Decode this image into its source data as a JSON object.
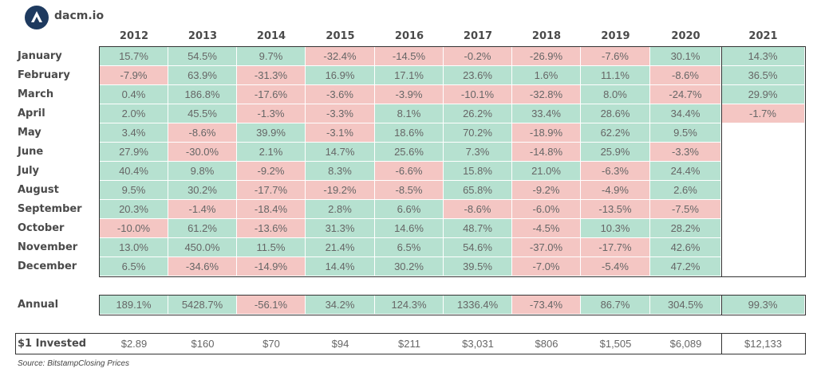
{
  "brand": {
    "name": "dacm.io",
    "logo_color": "#1e3a5f"
  },
  "colors": {
    "positive": "#b6e1d0",
    "negative": "#f4c6c3"
  },
  "chart_data": {
    "type": "table",
    "columns": [
      "2012",
      "2013",
      "2014",
      "2015",
      "2016",
      "2017",
      "2018",
      "2019",
      "2020",
      "2021"
    ],
    "rows": [
      {
        "label": "January",
        "values": [
          "15.7%",
          "54.5%",
          "9.7%",
          "-32.4%",
          "-14.5%",
          "-0.2%",
          "-26.9%",
          "-7.6%",
          "30.1%",
          "14.3%"
        ]
      },
      {
        "label": "February",
        "values": [
          "-7.9%",
          "63.9%",
          "-31.3%",
          "16.9%",
          "17.1%",
          "23.6%",
          "1.6%",
          "11.1%",
          "-8.6%",
          "36.5%"
        ]
      },
      {
        "label": "March",
        "values": [
          "0.4%",
          "186.8%",
          "-17.6%",
          "-3.6%",
          "-3.9%",
          "-10.1%",
          "-32.8%",
          "8.0%",
          "-24.7%",
          "29.9%"
        ]
      },
      {
        "label": "April",
        "values": [
          "2.0%",
          "45.5%",
          "-1.3%",
          "-3.3%",
          "8.1%",
          "26.2%",
          "33.4%",
          "28.6%",
          "34.4%",
          "-1.7%"
        ]
      },
      {
        "label": "May",
        "values": [
          "3.4%",
          "-8.6%",
          "39.9%",
          "-3.1%",
          "18.6%",
          "70.2%",
          "-18.9%",
          "62.2%",
          "9.5%",
          ""
        ]
      },
      {
        "label": "June",
        "values": [
          "27.9%",
          "-30.0%",
          "2.1%",
          "14.7%",
          "25.6%",
          "7.3%",
          "-14.8%",
          "25.9%",
          "-3.3%",
          ""
        ]
      },
      {
        "label": "July",
        "values": [
          "40.4%",
          "9.8%",
          "-9.2%",
          "8.3%",
          "-6.6%",
          "15.8%",
          "21.0%",
          "-6.3%",
          "24.4%",
          ""
        ]
      },
      {
        "label": "August",
        "values": [
          "9.5%",
          "30.2%",
          "-17.7%",
          "-19.2%",
          "-8.5%",
          "65.8%",
          "-9.2%",
          "-4.9%",
          "2.6%",
          ""
        ]
      },
      {
        "label": "September",
        "values": [
          "20.3%",
          "-1.4%",
          "-18.4%",
          "2.8%",
          "6.6%",
          "-8.6%",
          "-6.0%",
          "-13.5%",
          "-7.5%",
          ""
        ]
      },
      {
        "label": "October",
        "values": [
          "-10.0%",
          "61.2%",
          "-13.6%",
          "31.3%",
          "14.6%",
          "48.7%",
          "-4.5%",
          "10.3%",
          "28.2%",
          ""
        ]
      },
      {
        "label": "November",
        "values": [
          "13.0%",
          "450.0%",
          "11.5%",
          "21.4%",
          "6.5%",
          "54.6%",
          "-37.0%",
          "-17.7%",
          "42.6%",
          ""
        ]
      },
      {
        "label": "December",
        "values": [
          "6.5%",
          "-34.6%",
          "-14.9%",
          "14.4%",
          "30.2%",
          "39.5%",
          "-7.0%",
          "-5.4%",
          "47.2%",
          ""
        ]
      }
    ],
    "annual": {
      "label": "Annual",
      "values": [
        "189.1%",
        "5428.7%",
        "-56.1%",
        "34.2%",
        "124.3%",
        "1336.4%",
        "-73.4%",
        "86.7%",
        "304.5%",
        "99.3%"
      ]
    },
    "invested": {
      "label": "$1 Invested",
      "values": [
        "$2.89",
        "$160",
        "$70",
        "$94",
        "$211",
        "$3,031",
        "$806",
        "$1,505",
        "$6,089",
        "$12,133"
      ]
    }
  },
  "source": "Source: BitstampClosing Prices"
}
